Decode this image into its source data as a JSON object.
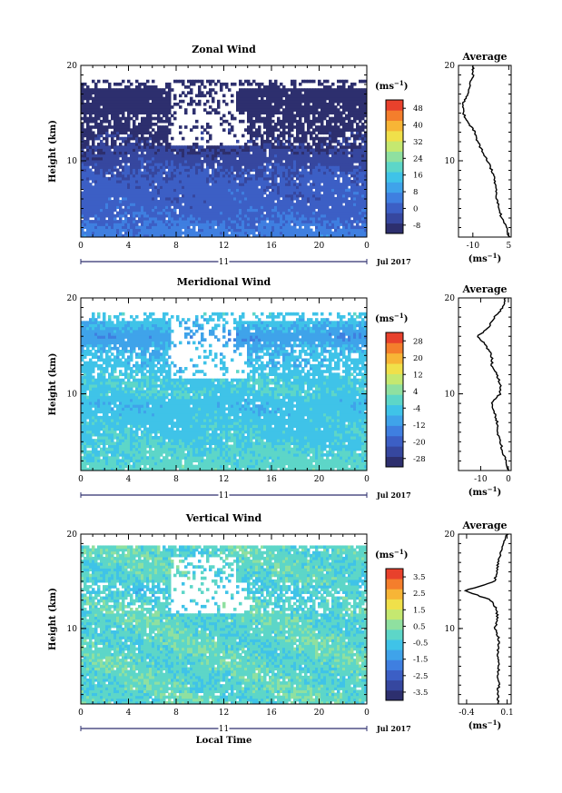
{
  "chart_data": [
    {
      "type": "heatmap",
      "key": "zonal",
      "title": "Zonal Wind",
      "ylabel": "Height (km)",
      "x_ticks": [
        "0",
        "4",
        "8",
        "12",
        "16",
        "20",
        "0"
      ],
      "xlim": [
        0,
        24
      ],
      "y_ticks": [
        "20",
        "10"
      ],
      "ylim": [
        2,
        20
      ],
      "day_label": "11",
      "month_label": "Jul 2017",
      "colorbar": {
        "unit_base": "(ms",
        "unit_exp": "−1",
        "unit_close": ")",
        "labels": [
          "48",
          "40",
          "32",
          "24",
          "16",
          "8",
          "0",
          "-8"
        ],
        "range": [
          -12,
          52
        ],
        "colors": [
          "#2d2f6e",
          "#36479f",
          "#3c5fc5",
          "#3f7fe0",
          "#3fa3ea",
          "#3fc3e8",
          "#5dd6c8",
          "#8fe0a0",
          "#c5e870",
          "#f0e04a",
          "#f7b536",
          "#f47e2c",
          "#e8412c"
        ]
      },
      "profile": {
        "title": "Average",
        "x_ticks": [
          "-10",
          "5"
        ],
        "xlim": [
          -16,
          6
        ],
        "y_ticks": [
          "20",
          "10"
        ],
        "xunit_base": "(ms",
        "xunit_exp": "−1",
        "xunit_close": ")",
        "height": [
          2,
          3,
          4,
          5,
          6,
          7,
          8,
          9,
          10,
          11,
          12,
          13,
          14,
          15,
          16,
          17,
          18,
          19,
          20
        ],
        "values": [
          5,
          4,
          2,
          1,
          0,
          0,
          -1,
          -2,
          -4,
          -6,
          -8,
          -9,
          -12,
          -14,
          -14,
          -12,
          -11,
          -10,
          -10
        ]
      }
    },
    {
      "type": "heatmap",
      "key": "meridional",
      "title": "Meridional Wind",
      "ylabel": "Height (km)",
      "x_ticks": [
        "0",
        "4",
        "8",
        "12",
        "16",
        "20",
        "0"
      ],
      "xlim": [
        0,
        24
      ],
      "y_ticks": [
        "20",
        "10"
      ],
      "ylim": [
        2,
        20
      ],
      "day_label": "11",
      "month_label": "Jul 2017",
      "colorbar": {
        "unit_base": "(ms",
        "unit_exp": "−1",
        "unit_close": ")",
        "labels": [
          "28",
          "20",
          "12",
          "4",
          "-4",
          "-12",
          "-20",
          "-28"
        ],
        "range": [
          -32,
          32
        ],
        "colors": [
          "#2d2f6e",
          "#36479f",
          "#3c5fc5",
          "#3f7fe0",
          "#3fa3ea",
          "#3fc3e8",
          "#5dd6c8",
          "#8fe0a0",
          "#c5e870",
          "#f0e04a",
          "#f7b536",
          "#f47e2c",
          "#e8412c"
        ]
      },
      "profile": {
        "title": "Average",
        "x_ticks": [
          "-10",
          "0"
        ],
        "xlim": [
          -18,
          1
        ],
        "y_ticks": [
          "20",
          "10"
        ],
        "xunit_base": "(ms",
        "xunit_exp": "−1",
        "xunit_close": ")",
        "height": [
          2,
          3,
          4,
          5,
          6,
          7,
          8,
          9,
          10,
          11,
          12,
          13,
          14,
          15,
          16,
          17,
          18,
          19,
          20
        ],
        "values": [
          0,
          -1,
          -2,
          -3,
          -4,
          -4,
          -5,
          -6,
          -3,
          -3,
          -4,
          -6,
          -6,
          -8,
          -11,
          -7,
          -5,
          -2,
          -1
        ]
      }
    },
    {
      "type": "heatmap",
      "key": "vertical",
      "title": "Vertical Wind",
      "ylabel": "Height (km)",
      "xlabel": "Local Time",
      "x_ticks": [
        "0",
        "4",
        "8",
        "12",
        "16",
        "20",
        "0"
      ],
      "xlim": [
        0,
        24
      ],
      "y_ticks": [
        "20",
        "10"
      ],
      "ylim": [
        2,
        20
      ],
      "day_label": "11",
      "month_label": "Jul 2017",
      "colorbar": {
        "unit_base": "(ms",
        "unit_exp": "−1",
        "unit_close": ")",
        "labels": [
          "3.5",
          "2.5",
          "1.5",
          "0.5",
          "-0.5",
          "-1.5",
          "-2.5",
          "-3.5"
        ],
        "range": [
          -4,
          4
        ],
        "colors": [
          "#2d2f6e",
          "#36479f",
          "#3c5fc5",
          "#3f7fe0",
          "#3fa3ea",
          "#3fc3e8",
          "#5dd6c8",
          "#8fe0a0",
          "#c5e870",
          "#f0e04a",
          "#f7b536",
          "#f47e2c",
          "#e8412c"
        ]
      },
      "profile": {
        "title": "Average",
        "x_ticks": [
          "-0.4",
          "0.1"
        ],
        "xlim": [
          -0.5,
          0.15
        ],
        "y_ticks": [
          "20",
          "10"
        ],
        "xunit_base": "(ms",
        "xunit_exp": "−1",
        "xunit_close": ")",
        "height": [
          2,
          3,
          4,
          5,
          6,
          7,
          8,
          9,
          10,
          11,
          12,
          13,
          14,
          15,
          16,
          17,
          18,
          19,
          20
        ],
        "values": [
          0.0,
          -0.02,
          0.0,
          -0.01,
          0.0,
          -0.02,
          -0.01,
          0.0,
          -0.05,
          -0.02,
          -0.03,
          -0.1,
          -0.42,
          -0.05,
          -0.03,
          -0.01,
          0.02,
          0.05,
          0.1
        ]
      }
    }
  ]
}
